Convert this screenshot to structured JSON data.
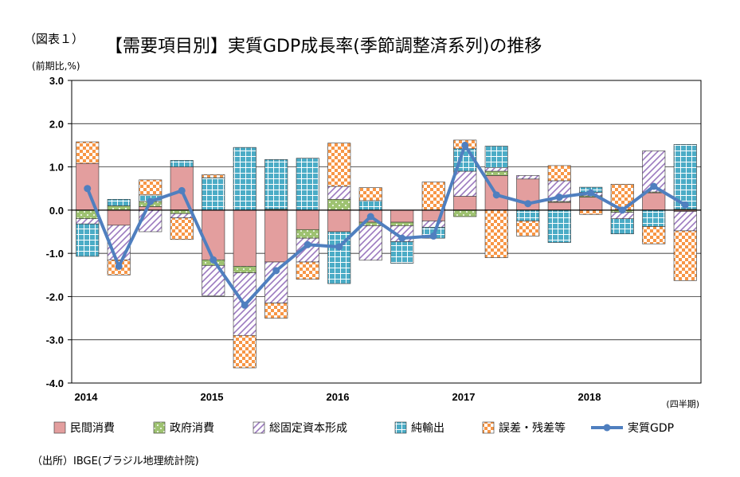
{
  "figure_label": "（図表１）",
  "title": "【需要項目別】実質GDP成長率(季節調整済系列)の推移",
  "ylabel": "(前期比,%)",
  "x_unit_label": "(四半期)",
  "source": "（出所）IBGE(ブラジル地理統計院)",
  "colors": {
    "consumption": "#e39e9e",
    "government": "#8db858",
    "investment": "#9b79bf",
    "net_exports": "#4bacc6",
    "errors": "#f79646",
    "gdp_line": "#4f7fbf"
  },
  "chart_data": {
    "type": "bar",
    "stacked": true,
    "title": "【需要項目別】実質GDP成長率(季節調整済系列)の推移",
    "ylabel": "(前期比,%)",
    "xlabel": "(四半期)",
    "ylim": [
      -4.0,
      3.0
    ],
    "yticks": [
      "3.0",
      "2.0",
      "1.0",
      "0.0",
      "-1.0",
      "-2.0",
      "-3.0",
      "-4.0"
    ],
    "ytick_values": [
      3,
      2,
      1,
      0,
      -1,
      -2,
      -3,
      -4
    ],
    "grid": true,
    "legend_position": "bottom",
    "categories": [
      "2014Q1",
      "2014Q2",
      "2014Q3",
      "2014Q4",
      "2015Q1",
      "2015Q2",
      "2015Q3",
      "2015Q4",
      "2016Q1",
      "2016Q2",
      "2016Q3",
      "2016Q4",
      "2017Q1",
      "2017Q2",
      "2017Q3",
      "2017Q4",
      "2018Q1",
      "2018Q2",
      "2018Q3",
      "2018Q4"
    ],
    "year_labels": [
      {
        "label": "2014",
        "index": 0
      },
      {
        "label": "2015",
        "index": 4
      },
      {
        "label": "2016",
        "index": 8
      },
      {
        "label": "2017",
        "index": 12
      },
      {
        "label": "2018",
        "index": 16
      }
    ],
    "series": [
      {
        "name": "民間消費",
        "key": "consumption",
        "pattern": "solid",
        "values": [
          1.08,
          -0.35,
          0.08,
          1.0,
          -1.15,
          -1.3,
          -1.2,
          -0.45,
          -0.5,
          -0.28,
          -0.28,
          -0.25,
          0.32,
          0.8,
          0.72,
          0.18,
          0.3,
          0.0,
          0.4,
          -0.03
        ]
      },
      {
        "name": "政府消費",
        "key": "government",
        "pattern": "dots",
        "values": [
          -0.2,
          0.1,
          0.12,
          -0.08,
          -0.13,
          -0.15,
          0.02,
          -0.2,
          0.25,
          -0.08,
          -0.08,
          0.0,
          -0.15,
          0.1,
          0.0,
          0.02,
          0.03,
          -0.05,
          0.02,
          0.02
        ]
      },
      {
        "name": "総固定資本形成",
        "key": "investment",
        "pattern": "diagonal",
        "values": [
          -0.12,
          -0.8,
          -0.5,
          -0.1,
          -0.7,
          -1.45,
          -0.95,
          -0.55,
          0.3,
          -0.8,
          -0.37,
          -0.15,
          0.58,
          0.08,
          0.08,
          0.48,
          0.08,
          -0.15,
          0.95,
          -0.45
        ]
      },
      {
        "name": "純輸出",
        "key": "net_exports",
        "pattern": "grid",
        "values": [
          -0.75,
          0.15,
          0.15,
          0.15,
          0.75,
          1.45,
          1.15,
          1.2,
          -1.2,
          0.22,
          -0.5,
          -0.25,
          0.52,
          0.5,
          -0.25,
          -0.75,
          0.12,
          -0.35,
          -0.38,
          1.5
        ]
      },
      {
        "name": "誤差・残差等",
        "key": "errors",
        "pattern": "checker",
        "values": [
          0.5,
          -0.35,
          0.35,
          -0.5,
          0.07,
          -0.75,
          -0.35,
          -0.4,
          1.0,
          0.3,
          0.0,
          0.65,
          0.2,
          -1.1,
          -0.35,
          0.35,
          -0.1,
          0.6,
          -0.4,
          -1.15
        ]
      }
    ],
    "line": {
      "name": "実質GDP",
      "key": "gdp_line",
      "values": [
        0.5,
        -1.3,
        0.2,
        0.45,
        -1.15,
        -2.2,
        -1.4,
        -0.8,
        -0.85,
        -0.15,
        -0.65,
        -0.6,
        1.5,
        0.35,
        0.15,
        0.3,
        0.4,
        0.0,
        0.55,
        0.12
      ]
    }
  }
}
